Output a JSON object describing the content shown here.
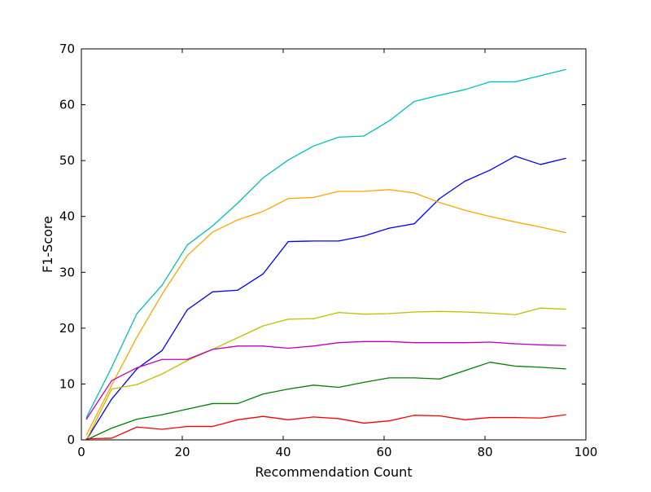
{
  "chart_data": {
    "type": "line",
    "xlabel": "Recommendation Count",
    "ylabel": "F1-Score",
    "xlim": [
      0,
      100
    ],
    "ylim": [
      0,
      70
    ],
    "xticks": [
      0,
      20,
      40,
      60,
      80,
      100
    ],
    "yticks": [
      0,
      10,
      20,
      30,
      40,
      50,
      60,
      70
    ],
    "grid": false,
    "x": [
      1,
      6,
      11,
      16,
      21,
      26,
      31,
      36,
      41,
      46,
      51,
      56,
      61,
      66,
      71,
      76,
      81,
      86,
      91,
      96
    ],
    "series": [
      {
        "color": "#00bfbf",
        "values": [
          4.0,
          13.0,
          22.6,
          27.7,
          34.9,
          38.3,
          42.4,
          46.9,
          50.1,
          52.6,
          54.2,
          54.4,
          57.1,
          60.6,
          61.7,
          62.7,
          64.1,
          64.1,
          65.2,
          66.3
        ]
      },
      {
        "color": "#0000ff",
        "values": [
          0.0,
          7.3,
          12.7,
          16.0,
          23.3,
          26.5,
          26.8,
          29.7,
          35.5,
          35.6,
          35.6,
          36.5,
          37.9,
          38.7,
          43.2,
          46.3,
          48.3,
          50.8,
          49.3,
          50.4
        ]
      },
      {
        "color": "#ffa500",
        "values": [
          0.9,
          9.8,
          18.4,
          26.1,
          33.0,
          37.2,
          39.4,
          40.9,
          43.2,
          43.4,
          44.5,
          44.5,
          44.8,
          44.2,
          42.5,
          41.1,
          40.0,
          39.0,
          38.1,
          37.1
        ]
      },
      {
        "color": "#bfbf00",
        "values": [
          0.0,
          9.1,
          9.9,
          11.8,
          14.2,
          16.2,
          18.3,
          20.4,
          21.6,
          21.7,
          22.8,
          22.5,
          22.6,
          22.9,
          23.0,
          22.9,
          22.7,
          22.4,
          23.6,
          23.4
        ]
      },
      {
        "color": "#bf00bf",
        "values": [
          3.7,
          10.6,
          12.9,
          14.4,
          14.4,
          16.2,
          16.8,
          16.8,
          16.4,
          16.8,
          17.4,
          17.6,
          17.6,
          17.4,
          17.4,
          17.4,
          17.5,
          17.2,
          17.0,
          16.9
        ]
      },
      {
        "color": "#008000",
        "values": [
          0.0,
          2.1,
          3.7,
          4.5,
          5.5,
          6.5,
          6.5,
          8.2,
          9.1,
          9.8,
          9.4,
          10.3,
          11.1,
          11.1,
          10.9,
          12.4,
          13.9,
          13.2,
          13.0,
          12.7
        ]
      },
      {
        "color": "#ff0000",
        "values": [
          0.2,
          0.3,
          2.3,
          1.9,
          2.4,
          2.4,
          3.6,
          4.2,
          3.6,
          4.1,
          3.8,
          3.0,
          3.4,
          4.4,
          4.3,
          3.6,
          4.0,
          4.0,
          3.9,
          4.5
        ]
      }
    ]
  }
}
